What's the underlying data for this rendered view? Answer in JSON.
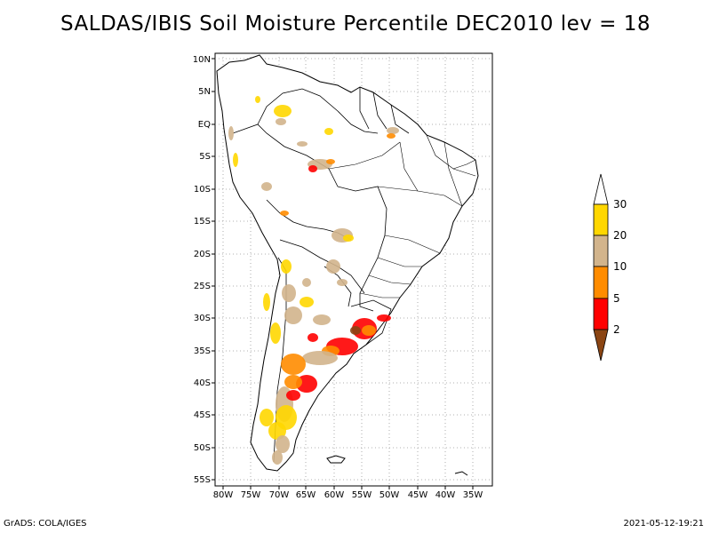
{
  "title": "SALDAS/IBIS Soil Moisture Percentile DEC2010 lev = 18",
  "map": {
    "lon_range": [
      -80,
      -32
    ],
    "lat_range": [
      -56,
      12
    ],
    "lat_labels": [
      "10N",
      "5N",
      "EQ",
      "5S",
      "10S",
      "15S",
      "20S",
      "25S",
      "30S",
      "35S",
      "40S",
      "45S",
      "50S",
      "55S"
    ],
    "lon_labels": [
      "80W",
      "75W",
      "70W",
      "65W",
      "60W",
      "55W",
      "50W",
      "45W",
      "40W",
      "35W"
    ]
  },
  "colorbar": {
    "labels": [
      "30",
      "20",
      "10",
      "5",
      "2"
    ],
    "colors": [
      "#ffd700",
      "#d2b48c",
      "#ff8c00",
      "#ff0000",
      "#8b4513",
      "#ffffff"
    ]
  },
  "footer": {
    "left": "GrADS: COLA/IGES",
    "right": "2021-05-12-19:21"
  }
}
